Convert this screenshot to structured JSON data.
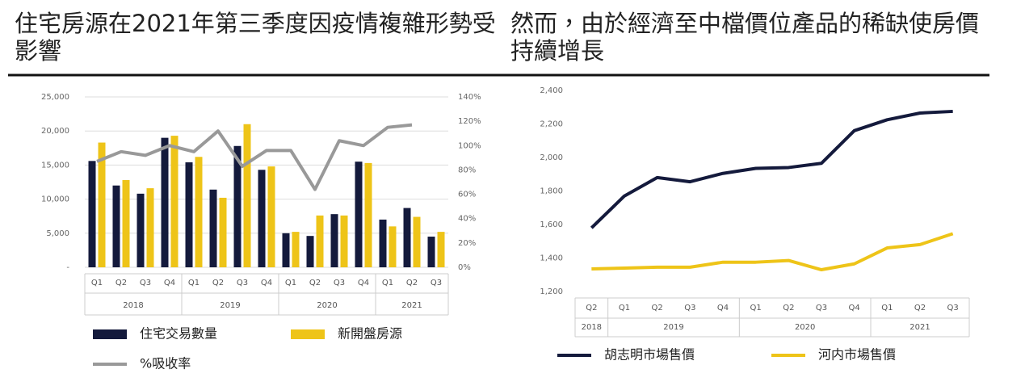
{
  "chart_data": [
    {
      "type": "bar",
      "title": "住宅房源在2021年第三季度因疫情複雜形勢受影響",
      "categories": [
        "Q1",
        "Q2",
        "Q3",
        "Q4",
        "Q1",
        "Q2",
        "Q3",
        "Q4",
        "Q1",
        "Q2",
        "Q3",
        "Q4",
        "Q1",
        "Q2",
        "Q3"
      ],
      "category_years": [
        "2018",
        null,
        null,
        null,
        "2019",
        null,
        null,
        null,
        "2020",
        null,
        null,
        null,
        "2021",
        null,
        null
      ],
      "series": [
        {
          "name": "住宅交易數量",
          "color": "#141a3c",
          "values": [
            15600,
            12000,
            10800,
            19000,
            15400,
            11400,
            17800,
            14300,
            5000,
            4600,
            7800,
            15500,
            7000,
            8700,
            4500
          ]
        },
        {
          "name": "新開盤房源",
          "color": "#eec418",
          "values": [
            18300,
            12800,
            11600,
            19300,
            16200,
            10200,
            21000,
            14800,
            5200,
            7600,
            7600,
            15300,
            6000,
            7400,
            5200
          ]
        },
        {
          "name": "%吸收率",
          "color": "#999999",
          "type": "line",
          "axis": "y2",
          "values": [
            87,
            95,
            92,
            100,
            95,
            112,
            83,
            96,
            96,
            64,
            104,
            100,
            115,
            117,
            null
          ]
        }
      ],
      "ylim": [
        0,
        25000
      ],
      "yticks": [
        {
          "value": 0,
          "label": "-"
        },
        {
          "value": 5000,
          "label": "5,000"
        },
        {
          "value": 10000,
          "label": "10,000"
        },
        {
          "value": 15000,
          "label": "15,000"
        },
        {
          "value": 20000,
          "label": "20,000"
        },
        {
          "value": 25000,
          "label": "25,000"
        }
      ],
      "y2lim": [
        0,
        140
      ],
      "y2ticks": [
        {
          "value": 0,
          "label": "0%"
        },
        {
          "value": 20,
          "label": "20%"
        },
        {
          "value": 40,
          "label": "40%"
        },
        {
          "value": 60,
          "label": "60%"
        },
        {
          "value": 80,
          "label": "80%"
        },
        {
          "value": 100,
          "label": "100%"
        },
        {
          "value": 120,
          "label": "120%"
        },
        {
          "value": 140,
          "label": "140%"
        }
      ],
      "grid": true
    },
    {
      "type": "line",
      "title": "然而，由於經濟至中檔價位產品的稀缺使房價持續增長",
      "categories": [
        "Q2",
        "Q1",
        "Q2",
        "Q3",
        "Q4",
        "Q1",
        "Q2",
        "Q3",
        "Q4",
        "Q1",
        "Q2",
        "Q3"
      ],
      "category_years": [
        "2018",
        "2019",
        null,
        null,
        null,
        "2020",
        null,
        null,
        null,
        "2021",
        null,
        null
      ],
      "series": [
        {
          "name": "胡志明市場售價",
          "color": "#141a3c",
          "values": [
            1580,
            1770,
            1880,
            1855,
            1905,
            1935,
            1940,
            1965,
            2160,
            2225,
            2265,
            2275
          ]
        },
        {
          "name": "河内市場售價",
          "color": "#eec418",
          "values": [
            1335,
            1340,
            1345,
            1345,
            1375,
            1375,
            1385,
            1330,
            1365,
            1460,
            1480,
            1545
          ]
        }
      ],
      "ylim": [
        1200,
        2400
      ],
      "yticks": [
        {
          "value": 1200,
          "label": "1,200"
        },
        {
          "value": 1400,
          "label": "1,400"
        },
        {
          "value": 1600,
          "label": "1,600"
        },
        {
          "value": 1800,
          "label": "1,800"
        },
        {
          "value": 2000,
          "label": "2,000"
        },
        {
          "value": 2200,
          "label": "2,200"
        },
        {
          "value": 2400,
          "label": "2,400"
        }
      ],
      "grid": false
    }
  ]
}
